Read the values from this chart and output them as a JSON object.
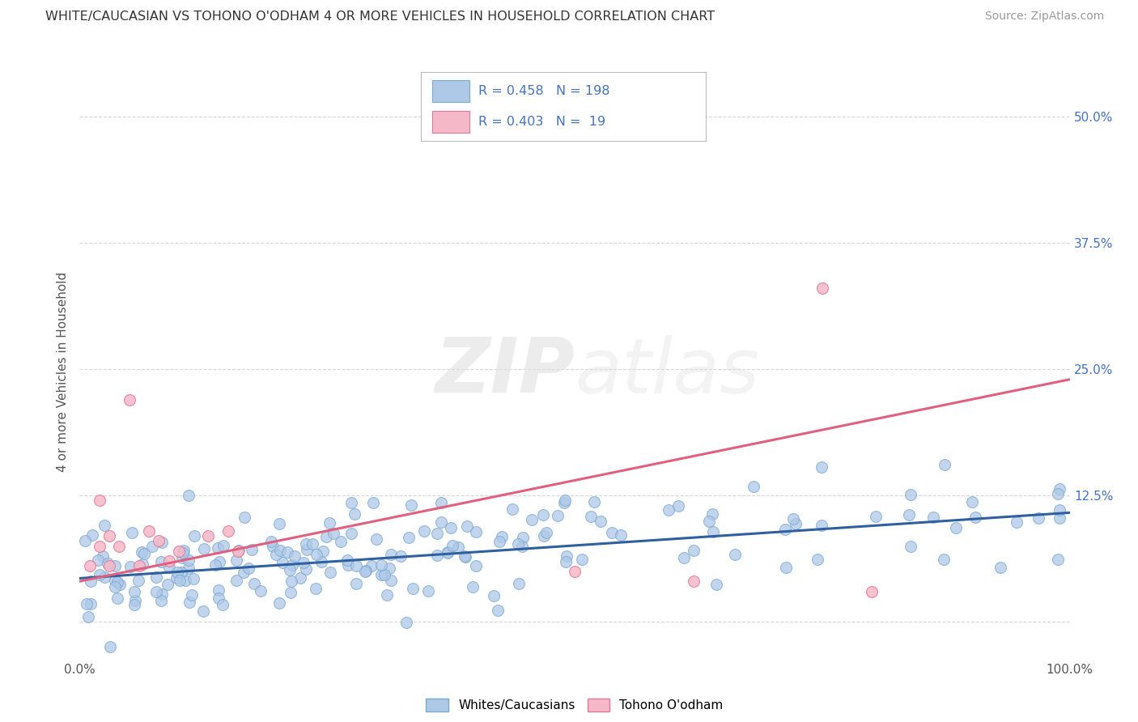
{
  "title": "WHITE/CAUCASIAN VS TOHONO O'ODHAM 4 OR MORE VEHICLES IN HOUSEHOLD CORRELATION CHART",
  "source": "Source: ZipAtlas.com",
  "ylabel": "4 or more Vehicles in Household",
  "blue_color": "#aec8e8",
  "blue_edge_color": "#7aaad0",
  "blue_line_color": "#3060a0",
  "pink_color": "#f5b8c8",
  "pink_edge_color": "#e07898",
  "pink_line_color": "#e06080",
  "watermark_zip": "ZIP",
  "watermark_atlas": "atlas",
  "background_color": "#ffffff",
  "grid_color": "#cccccc",
  "label_color_blue": "#4472c4",
  "text_color": "#555555",
  "x_min": 0.0,
  "x_max": 1.0,
  "y_min": -0.035,
  "y_max": 0.53,
  "y_ticks": [
    0.0,
    0.125,
    0.25,
    0.375,
    0.5
  ],
  "y_tick_labels": [
    "",
    "12.5%",
    "25.0%",
    "37.5%",
    "50.0%"
  ],
  "x_ticks": [
    0.0,
    1.0
  ],
  "x_tick_labels": [
    "0.0%",
    "100.0%"
  ],
  "blue_line_y0": 0.043,
  "blue_line_y1": 0.108,
  "pink_line_y0": 0.04,
  "pink_line_y1": 0.24,
  "legend_label1": "Whites/Caucasians",
  "legend_label2": "Tohono O'odham",
  "marker_size": 100
}
